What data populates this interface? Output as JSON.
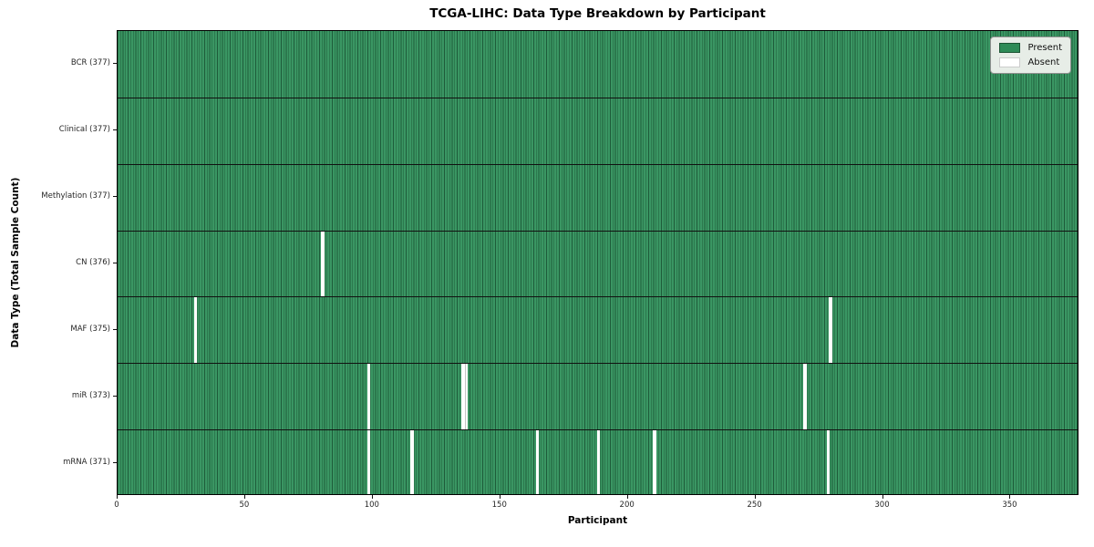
{
  "chart_data": {
    "type": "heatmap",
    "title": "TCGA-LIHC: Data Type Breakdown by Participant",
    "xlabel": "Participant",
    "ylabel": "Data Type (Total Sample Count)",
    "x_range": [
      0,
      377
    ],
    "x_ticks": [
      0,
      50,
      100,
      150,
      200,
      250,
      300,
      350
    ],
    "grid": "cell-edges",
    "legend_position": "upper right",
    "rows": [
      {
        "label": "BCR (377)",
        "data_type": "BCR",
        "present_count": 377,
        "absent_participants": []
      },
      {
        "label": "Clinical (377)",
        "data_type": "Clinical",
        "present_count": 377,
        "absent_participants": []
      },
      {
        "label": "Methylation (377)",
        "data_type": "Methylation",
        "present_count": 377,
        "absent_participants": []
      },
      {
        "label": "CN (376)",
        "data_type": "CN",
        "present_count": 376,
        "absent_participants": [
          80
        ]
      },
      {
        "label": "MAF (375)",
        "data_type": "MAF",
        "present_count": 375,
        "absent_participants": [
          30,
          279
        ]
      },
      {
        "label": "miR (373)",
        "data_type": "miR",
        "present_count": 373,
        "absent_participants": [
          98,
          135,
          136,
          269
        ]
      },
      {
        "label": "mRNA (371)",
        "data_type": "mRNA",
        "present_count": 371,
        "absent_participants": [
          98,
          115,
          164,
          188,
          210,
          278
        ]
      }
    ],
    "legend": [
      {
        "label": "Present",
        "color": "#2e8b57"
      },
      {
        "label": "Absent",
        "color": "#ffffff"
      }
    ],
    "colors": {
      "present_fill": "#3a9663",
      "cell_edge": "#1e5c3a",
      "absent_fill": "#ffffff",
      "absent_divider": "#c4c4c4",
      "row_separator": "#111111",
      "legend_bg": "#e7ede7",
      "legend_border": "#8f8f8f",
      "present_swatch_border": "#1c5434",
      "absent_swatch_border": "#cccccc"
    }
  }
}
